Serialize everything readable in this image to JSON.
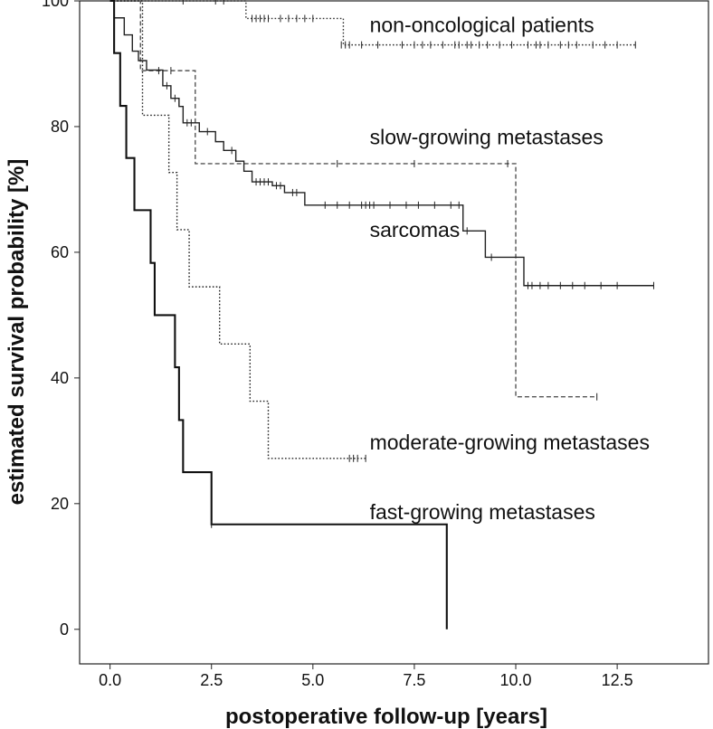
{
  "chart_data": {
    "type": "line",
    "subtype": "kaplan-meier",
    "xlabel": "postoperative follow-up [years]",
    "ylabel": "estimated survival probability [%]",
    "xlim": [
      -0.75,
      14.75
    ],
    "ylim": [
      -5.5,
      100
    ],
    "xticks": [
      0,
      2.5,
      5,
      7.5,
      10,
      12.5
    ],
    "xtick_labels": [
      "0.0",
      "2.5",
      "5.0",
      "7.5",
      "10.0",
      "12.5"
    ],
    "yticks": [
      0,
      20,
      40,
      60,
      80,
      100
    ],
    "ytick_labels": [
      "0",
      "20",
      "40",
      "60",
      "80",
      "100"
    ],
    "series": [
      {
        "name": "non-oncological patients",
        "style": "dotted",
        "color": "#333333",
        "steps": [
          [
            0,
            100
          ],
          [
            3.35,
            97.2
          ],
          [
            5.75,
            93
          ]
        ],
        "end_x": 12.95,
        "censored": [
          [
            1.8,
            100
          ],
          [
            2.6,
            100
          ],
          [
            2.8,
            100
          ],
          [
            3.5,
            97.2
          ],
          [
            3.6,
            97.2
          ],
          [
            3.7,
            97.2
          ],
          [
            3.8,
            97.2
          ],
          [
            3.9,
            97.2
          ],
          [
            4.2,
            97.2
          ],
          [
            4.4,
            97.2
          ],
          [
            4.6,
            97.2
          ],
          [
            4.8,
            97.2
          ],
          [
            5.0,
            97.2
          ],
          [
            5.7,
            93
          ],
          [
            5.8,
            93
          ],
          [
            5.9,
            93
          ],
          [
            6.2,
            93
          ],
          [
            6.6,
            93
          ],
          [
            7.2,
            93
          ],
          [
            7.5,
            93
          ],
          [
            7.7,
            93
          ],
          [
            7.9,
            93
          ],
          [
            8.2,
            93
          ],
          [
            8.5,
            93
          ],
          [
            8.6,
            93
          ],
          [
            8.8,
            93
          ],
          [
            8.9,
            93
          ],
          [
            9.1,
            93
          ],
          [
            9.3,
            93
          ],
          [
            9.6,
            93
          ],
          [
            9.9,
            93
          ],
          [
            10.3,
            93
          ],
          [
            10.5,
            93
          ],
          [
            10.6,
            93
          ],
          [
            10.8,
            93
          ],
          [
            11.1,
            93
          ],
          [
            11.3,
            93
          ],
          [
            11.5,
            93
          ],
          [
            11.9,
            93
          ],
          [
            12.2,
            93
          ],
          [
            12.5,
            93
          ],
          [
            12.95,
            93
          ]
        ],
        "label": {
          "text": "non-oncological patients",
          "x": 6.4,
          "y": 95
        }
      },
      {
        "name": "slow-growing metastases",
        "style": "dashed",
        "color": "#555555",
        "steps": [
          [
            0,
            100
          ],
          [
            0.75,
            88.9
          ],
          [
            2.1,
            74.1
          ],
          [
            10.0,
            37.0
          ]
        ],
        "end_x": 12.0,
        "censored": [
          [
            1.2,
            88.9
          ],
          [
            1.5,
            88.9
          ],
          [
            5.6,
            74.1
          ],
          [
            7.5,
            74.1
          ],
          [
            9.8,
            74.1
          ],
          [
            12.0,
            37.0
          ]
        ],
        "label": {
          "text": "slow-growing metastases",
          "x": 6.4,
          "y": 77.2
        }
      },
      {
        "name": "sarcomas",
        "style": "solid",
        "color": "#222222",
        "steps": [
          [
            0,
            100
          ],
          [
            0.1,
            97.3
          ],
          [
            0.35,
            94.6
          ],
          [
            0.55,
            92.0
          ],
          [
            0.7,
            90.5
          ],
          [
            0.9,
            89.0
          ],
          [
            1.3,
            86.5
          ],
          [
            1.5,
            84.5
          ],
          [
            1.7,
            83.2
          ],
          [
            1.8,
            80.6
          ],
          [
            2.2,
            79.2
          ],
          [
            2.6,
            77.6
          ],
          [
            2.8,
            76.2
          ],
          [
            3.1,
            74.5
          ],
          [
            3.3,
            72.9
          ],
          [
            3.5,
            71.2
          ],
          [
            4.0,
            70.6
          ],
          [
            4.3,
            69.5
          ],
          [
            4.8,
            67.5
          ],
          [
            8.7,
            63.4
          ],
          [
            9.25,
            59.2
          ],
          [
            10.2,
            54.7
          ]
        ],
        "end_x": 13.4,
        "censored": [
          [
            1.4,
            86.5
          ],
          [
            1.6,
            84.5
          ],
          [
            1.9,
            80.6
          ],
          [
            2.0,
            80.6
          ],
          [
            2.4,
            79.2
          ],
          [
            3.0,
            76.2
          ],
          [
            3.6,
            71.2
          ],
          [
            3.7,
            71.2
          ],
          [
            3.8,
            71.2
          ],
          [
            3.9,
            71.2
          ],
          [
            4.1,
            70.6
          ],
          [
            4.2,
            70.6
          ],
          [
            4.5,
            69.5
          ],
          [
            4.6,
            69.5
          ],
          [
            5.3,
            67.5
          ],
          [
            5.6,
            67.5
          ],
          [
            5.9,
            67.5
          ],
          [
            6.2,
            67.5
          ],
          [
            6.3,
            67.5
          ],
          [
            6.4,
            67.5
          ],
          [
            6.5,
            67.5
          ],
          [
            6.9,
            67.5
          ],
          [
            7.3,
            67.5
          ],
          [
            7.6,
            67.5
          ],
          [
            8.0,
            67.5
          ],
          [
            8.4,
            67.5
          ],
          [
            8.6,
            67.5
          ],
          [
            8.8,
            63.4
          ],
          [
            9.4,
            59.2
          ],
          [
            10.3,
            54.7
          ],
          [
            10.4,
            54.7
          ],
          [
            10.6,
            54.7
          ],
          [
            10.8,
            54.7
          ],
          [
            11.1,
            54.7
          ],
          [
            11.4,
            54.7
          ],
          [
            11.7,
            54.7
          ],
          [
            12.1,
            54.7
          ],
          [
            12.5,
            54.7
          ],
          [
            13.4,
            54.7
          ]
        ],
        "label": {
          "text": "sarcomas",
          "x": 6.4,
          "y": 62.4
        }
      },
      {
        "name": "moderate-growing metastases",
        "style": "dotted",
        "color": "#222222",
        "steps": [
          [
            0,
            100
          ],
          [
            0.8,
            81.8
          ],
          [
            1.45,
            72.7
          ],
          [
            1.65,
            63.6
          ],
          [
            1.95,
            54.5
          ],
          [
            2.7,
            45.4
          ],
          [
            3.45,
            36.3
          ],
          [
            3.9,
            27.2
          ]
        ],
        "end_x": 6.3,
        "censored": [
          [
            5.9,
            27.2
          ],
          [
            6.0,
            27.2
          ],
          [
            6.1,
            27.2
          ],
          [
            6.3,
            27.2
          ]
        ],
        "label": {
          "text": "moderate-growing metastases",
          "x": 6.4,
          "y": 28.6
        }
      },
      {
        "name": "fast-growing metastases",
        "style": "solid-thick",
        "color": "#111111",
        "steps": [
          [
            0,
            100
          ],
          [
            0.1,
            91.7
          ],
          [
            0.25,
            83.3
          ],
          [
            0.4,
            75.0
          ],
          [
            0.6,
            66.7
          ],
          [
            1.0,
            58.3
          ],
          [
            1.1,
            50.0
          ],
          [
            1.6,
            41.7
          ],
          [
            1.7,
            33.3
          ],
          [
            1.8,
            25.0
          ],
          [
            2.5,
            16.7
          ],
          [
            8.3,
            0
          ]
        ],
        "end_x": 8.3,
        "censored": [
          [
            2.5,
            16.7
          ]
        ],
        "label": {
          "text": "fast-growing metastases",
          "x": 6.4,
          "y": 17.5
        }
      }
    ]
  }
}
